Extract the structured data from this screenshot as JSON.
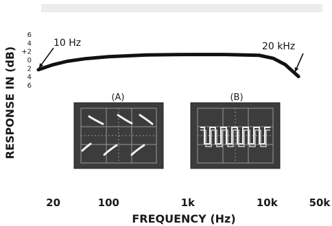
{
  "chart_data": {
    "type": "line",
    "title": "",
    "xlabel": "FREQUENCY (Hz)",
    "ylabel": "RESPONSE IN (dB)",
    "x_scale": "log",
    "xlim": [
      13,
      50000
    ],
    "x_ticks": [
      "20",
      "100",
      "1k",
      "10k",
      "50k"
    ],
    "x_tick_values": [
      20,
      100,
      1000,
      10000,
      50000
    ],
    "y_ticks": [
      "6",
      "4",
      "+2",
      "0",
      "2",
      "4",
      "6"
    ],
    "y_tick_values": [
      6,
      4,
      2,
      0,
      -2,
      -4,
      -6
    ],
    "ylim": [
      -6,
      6
    ],
    "grid": false,
    "series": [
      {
        "x": [
          13,
          16,
          20,
          30,
          50,
          100,
          300,
          1000,
          3000,
          8000,
          12000,
          17000,
          20000,
          25000
        ],
        "values": [
          -2.4,
          -1.8,
          -1.2,
          -0.4,
          0.2,
          0.7,
          1.1,
          1.2,
          1.2,
          1.0,
          0.3,
          -1.2,
          -2.4,
          -4.0
        ]
      }
    ],
    "annotations": [
      {
        "text": "10 Hz",
        "x": 13,
        "y": -2.4
      },
      {
        "text": "20 kHz",
        "x": 25000,
        "y": -4.0
      }
    ],
    "insets": [
      {
        "label": "(A)",
        "waveform": "dashes"
      },
      {
        "label": "(B)",
        "waveform": "square"
      }
    ]
  }
}
